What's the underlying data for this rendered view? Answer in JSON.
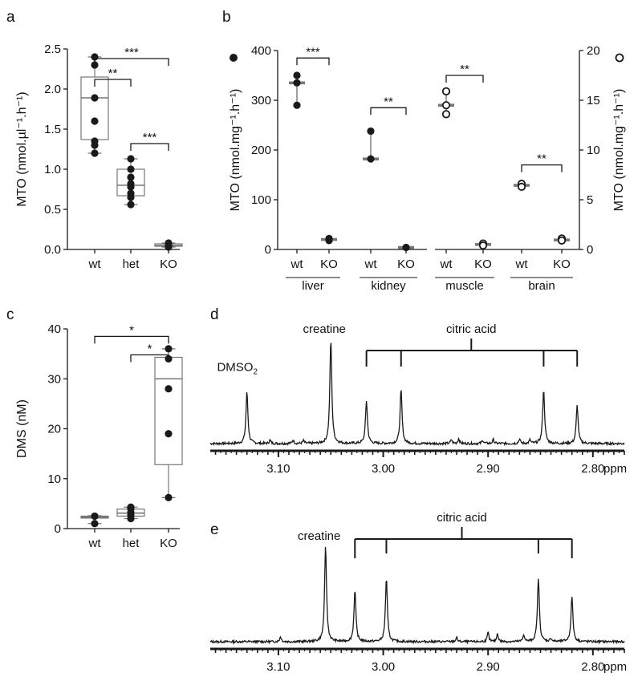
{
  "chart_data": [
    {
      "panel": "a",
      "type": "box",
      "ylabel": "MTO (nmol.µl⁻¹.h⁻¹)",
      "ylim": [
        0,
        2.5
      ],
      "yticks": [
        "0.0",
        "0.5",
        "1.0",
        "1.5",
        "2.0",
        "2.5"
      ],
      "categories": [
        "wt",
        "het",
        "KO"
      ],
      "boxes": [
        {
          "min": 1.2,
          "q1": 1.37,
          "median": 1.89,
          "q3": 2.15,
          "max": 2.4
        },
        {
          "min": 0.56,
          "q1": 0.67,
          "median": 0.8,
          "q3": 1.0,
          "max": 1.13
        },
        {
          "min": 0.03,
          "q1": 0.04,
          "median": 0.05,
          "q3": 0.07,
          "max": 0.08
        }
      ],
      "points": [
        [
          2.4,
          2.3,
          1.89,
          1.6,
          1.35,
          1.3,
          1.2
        ],
        [
          1.13,
          1.0,
          0.9,
          0.82,
          0.78,
          0.7,
          0.65,
          0.56
        ],
        [
          0.03,
          0.04,
          0.06,
          0.08
        ]
      ],
      "significance": [
        {
          "from": 0,
          "to": 1,
          "label": "**",
          "y": 2.12
        },
        {
          "from": 0,
          "to": 2,
          "label": "***",
          "y": 2.38
        },
        {
          "from": 1,
          "to": 2,
          "label": "***",
          "y": 1.32
        }
      ]
    },
    {
      "panel": "b",
      "type": "scatter",
      "ylabel_left": "MTO (nmol.mg⁻¹.h⁻¹)",
      "ylabel_right": "MTO (nmol.mg⁻¹.h⁻¹)",
      "ylim_left": [
        0,
        400
      ],
      "yticks_left": [
        "0",
        "100",
        "200",
        "300",
        "400"
      ],
      "ylim_right": [
        0,
        20
      ],
      "yticks_right": [
        "0",
        "5",
        "10",
        "15",
        "20"
      ],
      "groups": [
        {
          "tissue": "liver",
          "axis": "left",
          "marker": "filled",
          "wt": {
            "points": [
              350,
              335,
              290
            ],
            "median": 335,
            "min": 290,
            "max": 350
          },
          "KO": {
            "points": [
              22,
              18
            ],
            "median": 20,
            "min": 18,
            "max": 22
          },
          "significance": {
            "label": "***",
            "y": 385
          }
        },
        {
          "tissue": "kidney",
          "axis": "left",
          "marker": "filled",
          "wt": {
            "points": [
              238,
              182
            ],
            "median": 182,
            "min": 182,
            "max": 238
          },
          "KO": {
            "points": [
              4
            ],
            "median": 4,
            "min": 3,
            "max": 5
          },
          "significance": {
            "label": "**",
            "y": 285
          }
        },
        {
          "tissue": "muscle",
          "axis": "right",
          "marker": "open",
          "wt": {
            "points": [
              15.9,
              14.5,
              13.6
            ],
            "median": 14.5,
            "min": 13.6,
            "max": 15.9
          },
          "KO": {
            "points": [
              0.6,
              0.4
            ],
            "median": 0.5,
            "min": 0.3,
            "max": 0.7
          },
          "significance": {
            "label": "**",
            "y": 17.5
          }
        },
        {
          "tissue": "brain",
          "axis": "right",
          "marker": "open",
          "wt": {
            "points": [
              6.6,
              6.3
            ],
            "median": 6.45,
            "min": 6.2,
            "max": 6.8
          },
          "KO": {
            "points": [
              1.1,
              0.9
            ],
            "median": 0.95,
            "min": 0.8,
            "max": 1.2
          },
          "significance": {
            "label": "**",
            "y": 8.5
          }
        }
      ],
      "categories": [
        "wt",
        "KO"
      ]
    },
    {
      "panel": "c",
      "type": "box",
      "ylabel": "DMS (nM)",
      "ylim": [
        0,
        40
      ],
      "yticks": [
        "0",
        "10",
        "20",
        "30",
        "40"
      ],
      "categories": [
        "wt",
        "het",
        "KO"
      ],
      "boxes": [
        {
          "min": 1.0,
          "q1": 2.1,
          "median": 2.3,
          "q3": 2.5,
          "max": 2.6
        },
        {
          "min": 2.0,
          "q1": 2.5,
          "median": 3.1,
          "q3": 3.9,
          "max": 4.3
        },
        {
          "min": 6.2,
          "q1": 12.8,
          "median": 30.0,
          "q3": 34.3,
          "max": 36.0
        }
      ],
      "points": [
        [
          1.0,
          2.5
        ],
        [
          2.0,
          2.7,
          3.3,
          4.0,
          4.3
        ],
        [
          36.0,
          34.0,
          28.0,
          19.0,
          6.2
        ]
      ],
      "significance": [
        {
          "from": 0,
          "to": 2,
          "label": "*",
          "y": 38.5
        },
        {
          "from": 1,
          "to": 2,
          "label": "*",
          "y": 34.8
        }
      ]
    },
    {
      "panel": "d",
      "type": "line",
      "xlabel": "ppm",
      "xlim": [
        3.165,
        2.77
      ],
      "xticks": [
        "3.10",
        "3.00",
        "2.90",
        "2.80"
      ],
      "peaks": [
        {
          "ppm": 3.13,
          "height": 0.46
        },
        {
          "ppm": 3.05,
          "height": 0.93
        },
        {
          "ppm": 3.016,
          "height": 0.38
        },
        {
          "ppm": 2.983,
          "height": 0.48
        },
        {
          "ppm": 2.847,
          "height": 0.48
        },
        {
          "ppm": 2.815,
          "height": 0.34
        }
      ],
      "annotations": [
        {
          "text": "DMSO",
          "sub": "2",
          "ppm": 3.13
        },
        {
          "text": "creatine",
          "ppm": 3.05
        },
        {
          "text": "citric acid",
          "ppm": 2.916,
          "multiplet": [
            3.016,
            2.983,
            2.847,
            2.815
          ]
        }
      ]
    },
    {
      "panel": "e",
      "type": "line",
      "xlabel": "ppm",
      "xlim": [
        3.165,
        2.77
      ],
      "xticks": [
        "3.10",
        "3.00",
        "2.90",
        "2.80"
      ],
      "peaks": [
        {
          "ppm": 3.055,
          "height": 0.93
        },
        {
          "ppm": 3.027,
          "height": 0.5
        },
        {
          "ppm": 2.997,
          "height": 0.62
        },
        {
          "ppm": 2.852,
          "height": 0.62
        },
        {
          "ppm": 2.82,
          "height": 0.44
        }
      ],
      "annotations": [
        {
          "text": "creatine",
          "ppm": 3.055
        },
        {
          "text": "citric acid",
          "ppm": 2.925,
          "multiplet": [
            3.027,
            2.997,
            2.852,
            2.82
          ]
        }
      ]
    }
  ],
  "panel_letters": [
    "a",
    "b",
    "c",
    "d",
    "e"
  ]
}
